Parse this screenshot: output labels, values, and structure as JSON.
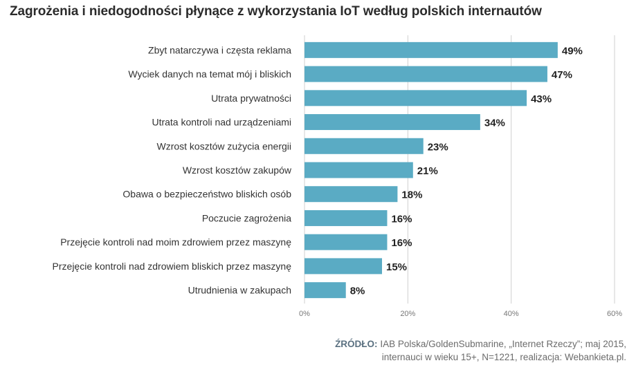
{
  "chart_data": {
    "type": "bar",
    "orientation": "horizontal",
    "title": "Zagrożenia i niedogodności płynące z wykorzystania IoT według polskich internautów",
    "categories": [
      "Zbyt natarczywa i częsta reklama",
      "Wyciek danych na temat mój i bliskich",
      "Utrata prywatności",
      "Utrata kontroli nad urządzeniami",
      "Wzrost kosztów zużycia energii",
      "Wzrost kosztów zakupów",
      "Obawa o bezpieczeństwo bliskich osób",
      "Poczucie zagrożenia",
      "Przejęcie kontroli nad moim zdrowiem przez maszynę",
      "Przejęcie kontroli nad zdrowiem bliskich przez maszynę",
      "Utrudnienia w zakupach"
    ],
    "values": [
      49,
      47,
      43,
      34,
      23,
      21,
      18,
      16,
      16,
      15,
      8
    ],
    "value_labels": [
      "49%",
      "47%",
      "43%",
      "34%",
      "23%",
      "21%",
      "18%",
      "16%",
      "16%",
      "15%",
      "8%"
    ],
    "xlim": [
      0,
      60
    ],
    "ticks": [
      0,
      20,
      40,
      60
    ],
    "tick_labels": [
      "0%",
      "20%",
      "40%",
      "60%"
    ],
    "grid": true,
    "bar_color": "#5aabc4",
    "xlabel": "",
    "ylabel": ""
  },
  "source": {
    "label": "ŹRÓDŁO:",
    "line1": "IAB Polska/GoldenSubmarine, „Internet Rzeczy”; maj 2015,",
    "line2": "internauci w wieku 15+, N=1221, realizacja: Webankieta.pl."
  }
}
